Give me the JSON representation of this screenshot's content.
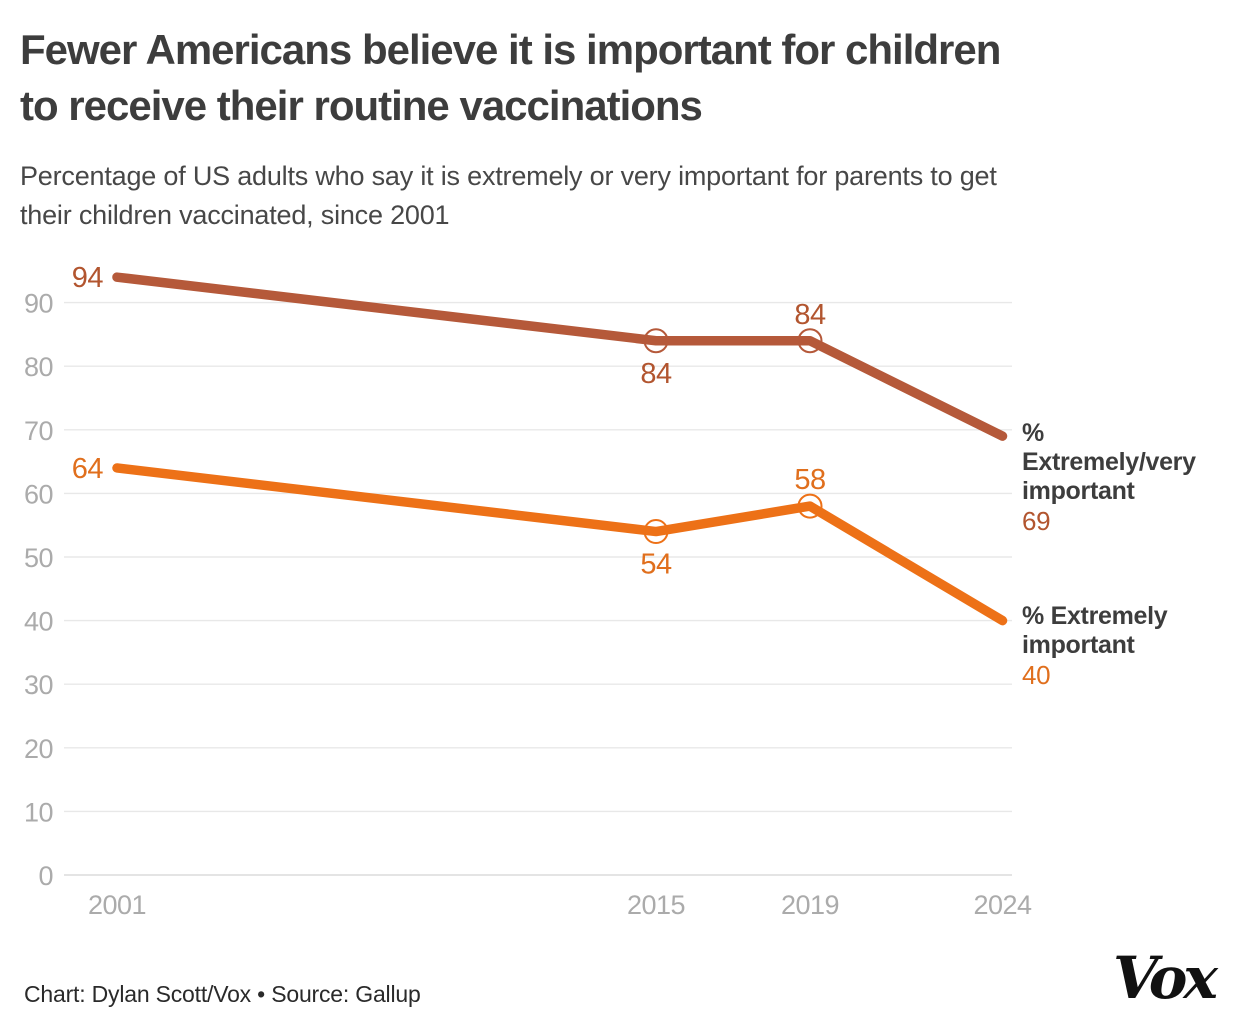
{
  "chart_data": {
    "type": "line",
    "title": "Fewer Americans believe it is important for children\nto receive their routine vaccinations",
    "subtitle": "Percentage of US adults who say it is extremely or very important for parents to get\ntheir children vaccinated, since 2001",
    "x": [
      2001,
      2015,
      2019,
      2024
    ],
    "x_tick_labels": [
      "2001",
      "2015",
      "2019",
      "2024"
    ],
    "yticks": [
      0,
      10,
      20,
      30,
      40,
      50,
      60,
      70,
      80,
      90
    ],
    "ylim": [
      0,
      100
    ],
    "xlabel": "",
    "ylabel": "",
    "grid": true,
    "legend_position": "right-of-line-ends",
    "gridline_color": "#e8e8e8",
    "baseline_color": "#dcdcdc",
    "tick_label_color": "#ababab",
    "series": [
      {
        "name": "% Extremely/very important",
        "values": [
          94,
          84,
          84,
          69
        ],
        "color": "#b5593a",
        "label_color": "#b2552f",
        "marker_indices": [
          1,
          2
        ],
        "label_positions": [
          "left",
          "below",
          "above",
          "none"
        ],
        "end_lines": [
          "%",
          "Extremely/very",
          "important"
        ],
        "end_value": "69"
      },
      {
        "name": "% Extremely important",
        "values": [
          64,
          54,
          58,
          40
        ],
        "color": "#ed7117",
        "label_color": "#e06f1d",
        "marker_indices": [
          1,
          2
        ],
        "label_positions": [
          "left",
          "below",
          "above",
          "none"
        ],
        "end_lines": [
          "% Extremely",
          "important"
        ],
        "end_value": "40"
      }
    ]
  },
  "footer": {
    "credit": "Chart: Dylan Scott/Vox • Source: Gallup",
    "logo": "Vox"
  }
}
